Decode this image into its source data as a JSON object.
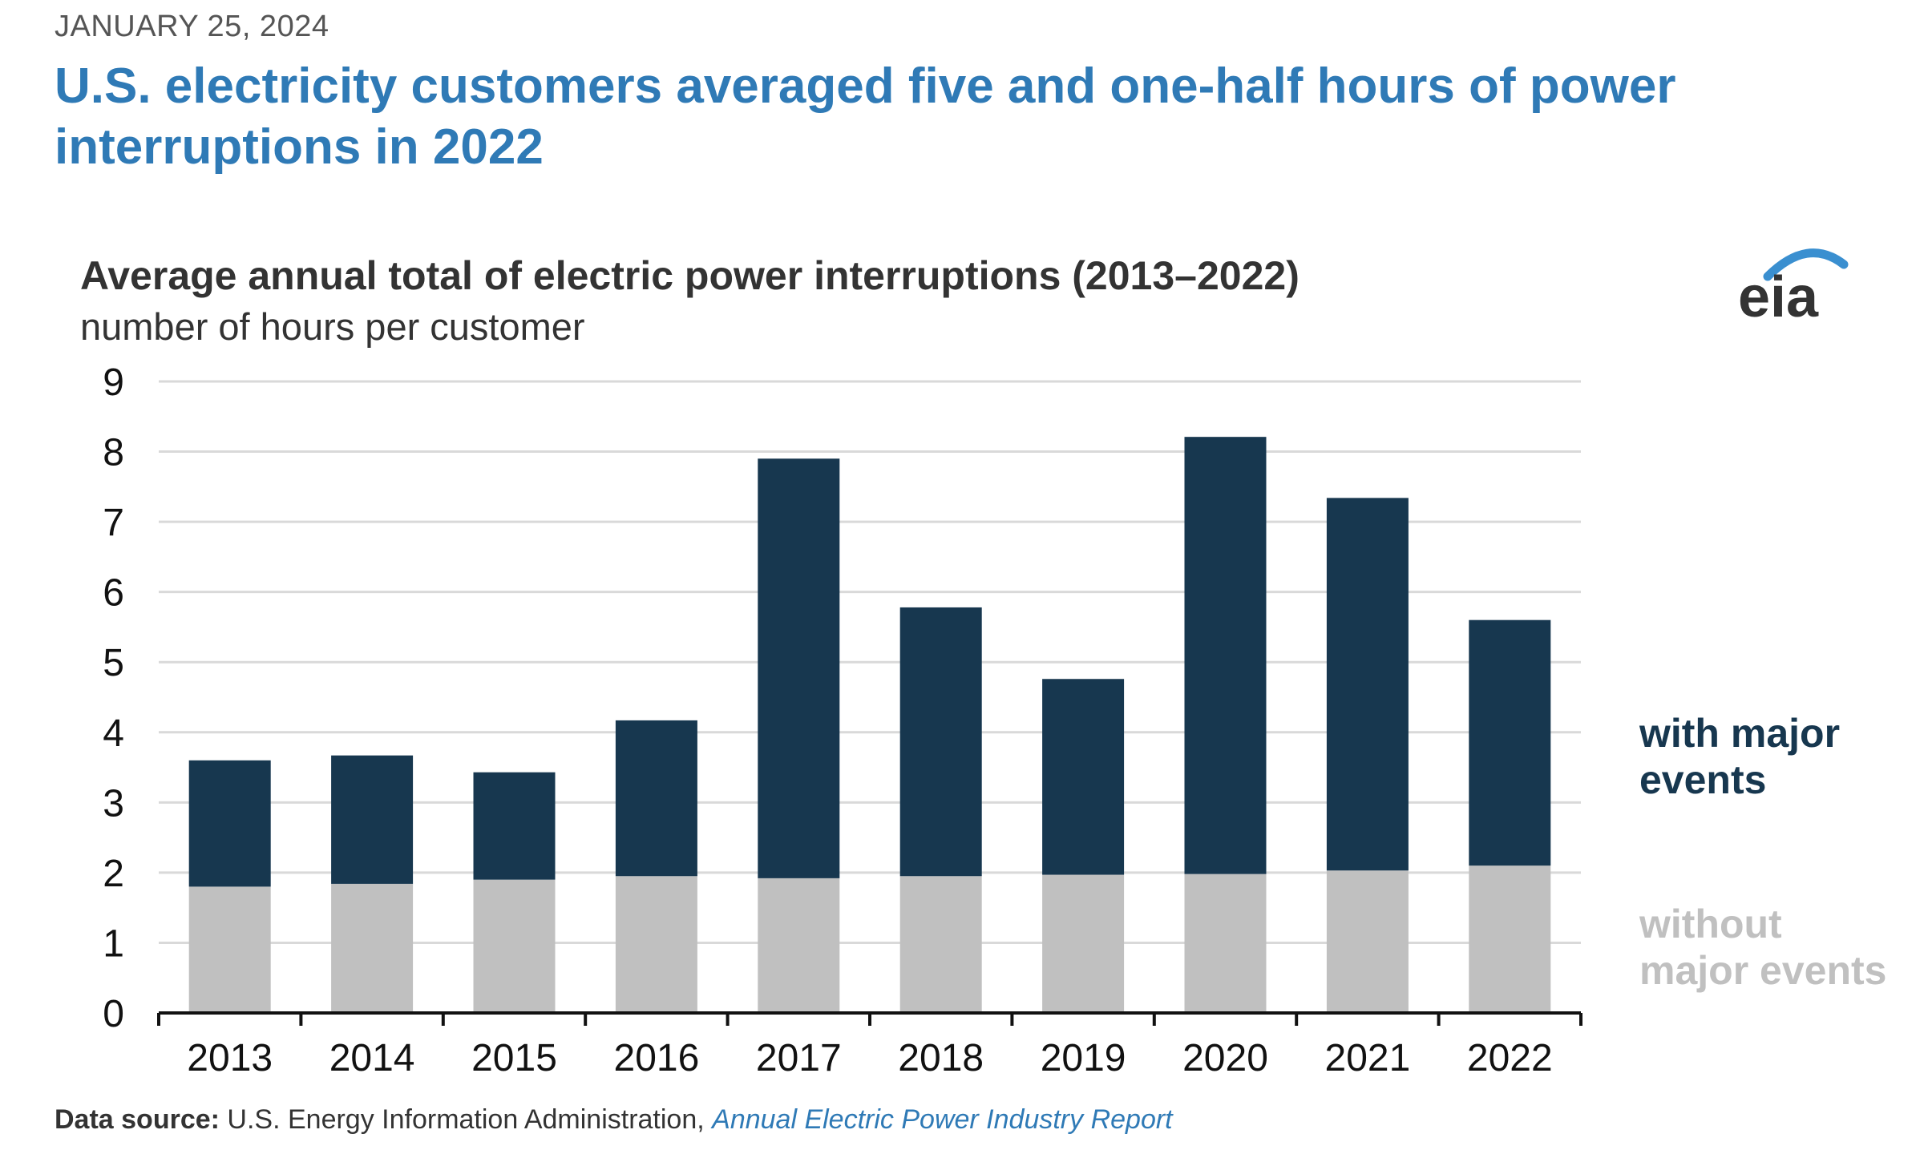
{
  "header": {
    "date": "JANUARY 25, 2024",
    "headline": "U.S. electricity customers averaged five and one-half hours of power interruptions in 2022"
  },
  "logo": {
    "text": "eia",
    "icon": "eia-logo"
  },
  "source": {
    "label": "Data source:",
    "text": "U.S. Energy Information Administration,",
    "link_text": "Annual Electric Power Industry Report"
  },
  "colors": {
    "with_major": "#17374f",
    "without_major": "#c0c0c0",
    "headline": "#2f7ab6",
    "grid": "#d9d9d9"
  },
  "chart_data": {
    "type": "bar",
    "stacked": true,
    "title": "Average annual total of electric power interruptions (2013–2022)",
    "subtitle": "number of hours per customer",
    "categories": [
      "2013",
      "2014",
      "2015",
      "2016",
      "2017",
      "2018",
      "2019",
      "2020",
      "2021",
      "2022"
    ],
    "series": [
      {
        "name": "without major events",
        "color": "#c0c0c0",
        "values": [
          1.8,
          1.84,
          1.9,
          1.95,
          1.92,
          1.95,
          1.97,
          1.98,
          2.03,
          2.1
        ]
      },
      {
        "name": "with major events",
        "color": "#17374f",
        "values": [
          1.8,
          1.83,
          1.53,
          2.22,
          5.98,
          3.83,
          2.79,
          6.23,
          5.31,
          3.5
        ]
      }
    ],
    "totals": [
      3.6,
      3.67,
      3.43,
      4.17,
      7.9,
      5.78,
      4.76,
      8.21,
      7.34,
      5.6
    ],
    "ylim": [
      0,
      9
    ],
    "yticks": [
      0,
      1,
      2,
      3,
      4,
      5,
      6,
      7,
      8,
      9
    ],
    "grid": true,
    "legend": "right"
  }
}
